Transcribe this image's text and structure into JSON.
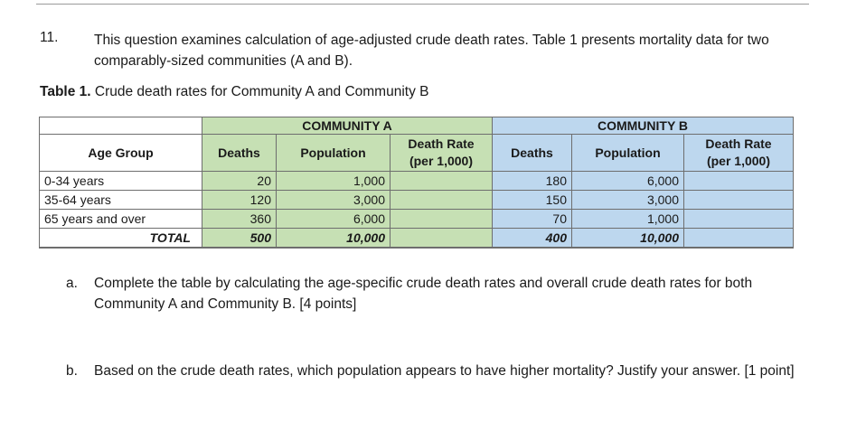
{
  "question": {
    "number": "11.",
    "text": "This question examines calculation of age-adjusted crude death rates. Table 1 presents mortality data for two comparably-sized communities (A and B)."
  },
  "table_caption": {
    "label": "Table 1.",
    "text": " Crude death rates for Community A and Community B"
  },
  "table": {
    "group_a": "COMMUNITY A",
    "group_b": "COMMUNITY B",
    "age_group_header": "Age Group",
    "deaths_header": "Deaths",
    "population_header": "Population",
    "rate_header_line1": "Death Rate",
    "rate_header_line2": "(per 1,000)",
    "rows": [
      {
        "age": "0-34 years",
        "a_deaths": "20",
        "a_pop": "1,000",
        "a_rate": "",
        "b_deaths": "180",
        "b_pop": "6,000",
        "b_rate": ""
      },
      {
        "age": "35-64 years",
        "a_deaths": "120",
        "a_pop": "3,000",
        "a_rate": "",
        "b_deaths": "150",
        "b_pop": "3,000",
        "b_rate": ""
      },
      {
        "age": "65 years and over",
        "a_deaths": "360",
        "a_pop": "6,000",
        "a_rate": "",
        "b_deaths": "70",
        "b_pop": "1,000",
        "b_rate": ""
      }
    ],
    "total": {
      "label": "TOTAL",
      "a_deaths": "500",
      "a_pop": "10,000",
      "a_rate": "",
      "b_deaths": "400",
      "b_pop": "10,000",
      "b_rate": ""
    }
  },
  "parts": {
    "a": {
      "letter": "a.",
      "text": "Complete the table by calculating the age-specific crude death rates and overall crude death rates for both Community A and Community B. [4 points]"
    },
    "b": {
      "letter": "b.",
      "text": "Based on the crude death rates, which population appears to have higher mortality? Justify your answer. [1 point]"
    }
  }
}
